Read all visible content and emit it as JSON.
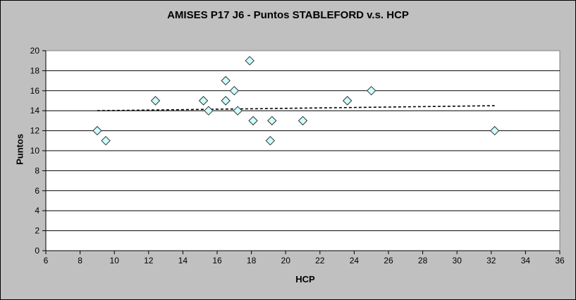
{
  "chart_data": {
    "type": "scatter",
    "title": "AMISES P17 J6 - Puntos STABLEFORD v.s. HCP",
    "xlabel": "HCP",
    "ylabel": "Puntos",
    "xlim": [
      6,
      36
    ],
    "ylim": [
      0,
      20
    ],
    "x_ticks": [
      6,
      8,
      10,
      12,
      14,
      16,
      18,
      20,
      22,
      24,
      26,
      28,
      30,
      32,
      34,
      36
    ],
    "y_ticks": [
      0,
      2,
      4,
      6,
      8,
      10,
      12,
      14,
      16,
      18,
      20
    ],
    "grid": "horizontal",
    "legend": "none",
    "marker": "diamond",
    "colors": {
      "background": "#c0c0c0",
      "plot_area": "#ffffff",
      "marker_fill": "#ccffff",
      "marker_edge": "#333333",
      "trendline": "#000000"
    },
    "points": [
      {
        "x": 9.0,
        "y": 12
      },
      {
        "x": 9.5,
        "y": 11
      },
      {
        "x": 12.4,
        "y": 15
      },
      {
        "x": 15.2,
        "y": 15
      },
      {
        "x": 15.5,
        "y": 14
      },
      {
        "x": 16.5,
        "y": 17
      },
      {
        "x": 16.5,
        "y": 15
      },
      {
        "x": 17.0,
        "y": 16
      },
      {
        "x": 17.2,
        "y": 14
      },
      {
        "x": 17.9,
        "y": 19
      },
      {
        "x": 18.1,
        "y": 13
      },
      {
        "x": 19.1,
        "y": 11
      },
      {
        "x": 19.2,
        "y": 13
      },
      {
        "x": 21.0,
        "y": 13
      },
      {
        "x": 23.6,
        "y": 15
      },
      {
        "x": 25.0,
        "y": 16
      },
      {
        "x": 32.2,
        "y": 12
      }
    ],
    "trendline": {
      "type": "linear",
      "style": "dashed",
      "from": {
        "x": 9.0,
        "y": 14.0
      },
      "to": {
        "x": 32.2,
        "y": 14.5
      }
    }
  }
}
